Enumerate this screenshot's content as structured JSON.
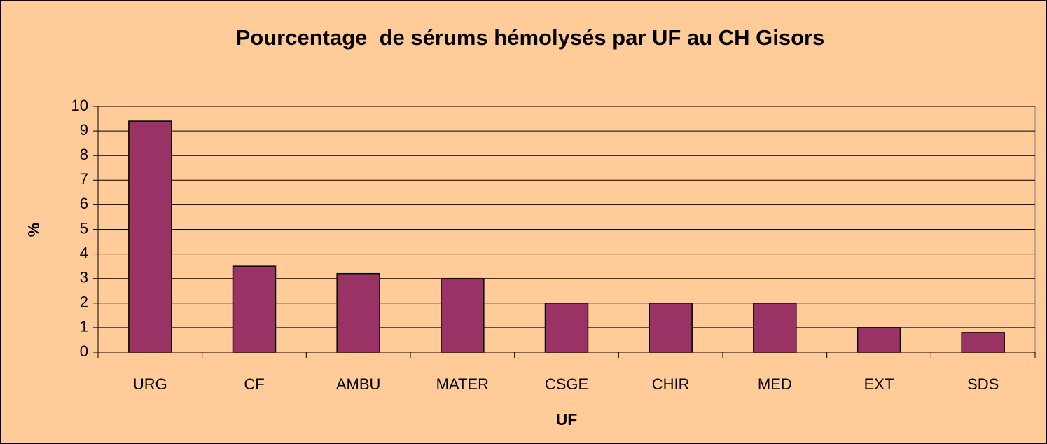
{
  "chart_data": {
    "type": "bar",
    "title": "Pourcentage  de sérums hémolysés par UF au CH Gisors",
    "x_label": "UF",
    "y_label": "%",
    "categories": [
      "URG",
      "CF",
      "AMBU",
      "MATER",
      "CSGE",
      "CHIR",
      "MED",
      "EXT",
      "SDS"
    ],
    "values": [
      9.4,
      3.5,
      3.2,
      3.0,
      2.0,
      2.0,
      2.0,
      1.0,
      0.8
    ],
    "color": "#993366",
    "ylim": [
      0,
      10
    ],
    "yticks": [
      0,
      1,
      2,
      3,
      4,
      5,
      6,
      7,
      8,
      9,
      10
    ],
    "grid": true
  }
}
